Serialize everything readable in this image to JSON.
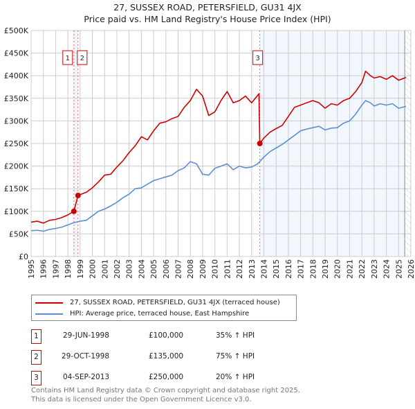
{
  "title": "27, SUSSEX ROAD, PETERSFIELD, GU31 4JX",
  "subtitle": "Price paid vs. HM Land Registry's House Price Index (HPI)",
  "chart_data": {
    "type": "line",
    "title": "27, SUSSEX ROAD, PETERSFIELD, GU31 4JX",
    "subtitle": "Price paid vs. HM Land Registry's House Price Index (HPI)",
    "xlim": [
      1995,
      2026
    ],
    "ylim": [
      0,
      500000
    ],
    "x_ticks": [
      "1995",
      "1996",
      "1997",
      "1998",
      "1999",
      "2000",
      "2001",
      "2002",
      "2003",
      "2004",
      "2005",
      "2006",
      "2007",
      "2008",
      "2009",
      "2010",
      "2011",
      "2012",
      "2013",
      "2014",
      "2015",
      "2016",
      "2017",
      "2018",
      "2019",
      "2020",
      "2021",
      "2022",
      "2023",
      "2024",
      "2025",
      "2026"
    ],
    "y_ticks": [
      {
        "v": 0,
        "l": "£0"
      },
      {
        "v": 50000,
        "l": "£50K"
      },
      {
        "v": 100000,
        "l": "£100K"
      },
      {
        "v": 150000,
        "l": "£150K"
      },
      {
        "v": 200000,
        "l": "£200K"
      },
      {
        "v": 250000,
        "l": "£250K"
      },
      {
        "v": 300000,
        "l": "£300K"
      },
      {
        "v": 350000,
        "l": "£350K"
      },
      {
        "v": 400000,
        "l": "£400K"
      },
      {
        "v": 450000,
        "l": "£450K"
      },
      {
        "v": 500000,
        "l": "£500K"
      }
    ],
    "series": [
      {
        "name": "27, SUSSEX ROAD, PETERSFIELD, GU31 4JX (terraced house)",
        "color": "#cc0000",
        "x": [
          1995,
          1995.5,
          1996,
          1996.5,
          1997,
          1997.5,
          1998,
          1998.49,
          1998.83,
          1999,
          1999.5,
          2000,
          2000.5,
          2001,
          2001.5,
          2002,
          2002.5,
          2003,
          2003.5,
          2004,
          2004.5,
          2005,
          2005.5,
          2006,
          2006.5,
          2007,
          2007.5,
          2008,
          2008.5,
          2009,
          2009.5,
          2010,
          2010.5,
          2011,
          2011.5,
          2012,
          2012.5,
          2013,
          2013.6,
          2013.67,
          2014,
          2014.5,
          2015,
          2015.5,
          2016,
          2016.5,
          2017,
          2017.5,
          2018,
          2018.5,
          2019,
          2019.5,
          2020,
          2020.5,
          2021,
          2021.5,
          2022,
          2022.3,
          2022.7,
          2023,
          2023.5,
          2024,
          2024.5,
          2025,
          2025.6
        ],
        "y": [
          76000,
          78000,
          74000,
          80000,
          82000,
          86000,
          92000,
          100000,
          135000,
          137000,
          142000,
          152000,
          165000,
          180000,
          182000,
          198000,
          212000,
          230000,
          245000,
          265000,
          258000,
          278000,
          295000,
          298000,
          305000,
          310000,
          330000,
          345000,
          370000,
          355000,
          312000,
          320000,
          345000,
          365000,
          340000,
          345000,
          355000,
          340000,
          360000,
          250000,
          262000,
          275000,
          283000,
          290000,
          310000,
          330000,
          335000,
          340000,
          345000,
          340000,
          328000,
          338000,
          335000,
          345000,
          350000,
          365000,
          385000,
          410000,
          400000,
          395000,
          398000,
          392000,
          400000,
          390000,
          396000
        ]
      },
      {
        "name": "HPI: Average price, terraced house, East Hampshire",
        "color": "#5b8fd4",
        "x": [
          1995,
          1995.5,
          1996,
          1996.5,
          1997,
          1997.5,
          1998,
          1998.5,
          1999,
          1999.5,
          2000,
          2000.5,
          2001,
          2001.5,
          2002,
          2002.5,
          2003,
          2003.5,
          2004,
          2004.5,
          2005,
          2005.5,
          2006,
          2006.5,
          2007,
          2007.5,
          2008,
          2008.5,
          2009,
          2009.5,
          2010,
          2010.5,
          2011,
          2011.5,
          2012,
          2012.5,
          2013,
          2013.5,
          2014,
          2014.5,
          2015,
          2015.5,
          2016,
          2016.5,
          2017,
          2017.5,
          2018,
          2018.5,
          2019,
          2019.5,
          2020,
          2020.5,
          2021,
          2021.5,
          2022,
          2022.3,
          2022.7,
          2023,
          2023.5,
          2024,
          2024.5,
          2025,
          2025.6
        ],
        "y": [
          57000,
          58000,
          56000,
          60000,
          62000,
          65000,
          70000,
          75000,
          78000,
          80000,
          90000,
          100000,
          105000,
          112000,
          120000,
          130000,
          138000,
          150000,
          152000,
          160000,
          168000,
          172000,
          176000,
          180000,
          190000,
          196000,
          210000,
          205000,
          182000,
          180000,
          195000,
          200000,
          205000,
          192000,
          200000,
          196000,
          198000,
          205000,
          220000,
          232000,
          240000,
          248000,
          258000,
          268000,
          278000,
          282000,
          285000,
          288000,
          280000,
          284000,
          285000,
          295000,
          300000,
          315000,
          335000,
          345000,
          340000,
          333000,
          338000,
          335000,
          338000,
          328000,
          332000
        ]
      }
    ],
    "sales": [
      {
        "n": "1",
        "x": 1998.49,
        "y": 100000
      },
      {
        "n": "2",
        "x": 1998.83,
        "y": 135000
      },
      {
        "n": "3",
        "x": 2013.67,
        "y": 250000
      }
    ],
    "forecast_start": 2025.5
  },
  "legend": [
    {
      "label": "27, SUSSEX ROAD, PETERSFIELD, GU31 4JX (terraced house)",
      "color": "#cc0000"
    },
    {
      "label": "HPI: Average price, terraced house, East Hampshire",
      "color": "#5b8fd4"
    }
  ],
  "transactions": [
    {
      "n": "1",
      "date": "29-JUN-1998",
      "price": "£100,000",
      "hpi": "35% ↑ HPI"
    },
    {
      "n": "2",
      "date": "29-OCT-1998",
      "price": "£135,000",
      "hpi": "75% ↑ HPI"
    },
    {
      "n": "3",
      "date": "04-SEP-2013",
      "price": "£250,000",
      "hpi": "20% ↑ HPI"
    }
  ],
  "footer": [
    "Contains HM Land Registry data © Crown copyright and database right 2025.",
    "This data is licensed under the Open Government Licence v3.0."
  ]
}
